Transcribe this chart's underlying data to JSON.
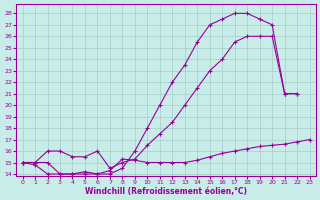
{
  "xlabel": "Windchill (Refroidissement éolien,°C)",
  "bg_color": "#c8ece8",
  "line_color": "#990099",
  "grid_color": "#a8ccc8",
  "xlim": [
    -0.5,
    23.5
  ],
  "ylim": [
    13.8,
    28.8
  ],
  "xticks": [
    0,
    1,
    2,
    3,
    4,
    5,
    6,
    7,
    8,
    9,
    10,
    11,
    12,
    13,
    14,
    15,
    16,
    17,
    18,
    19,
    20,
    21,
    22,
    23
  ],
  "yticks": [
    14,
    15,
    16,
    17,
    18,
    19,
    20,
    21,
    22,
    23,
    24,
    25,
    26,
    27,
    28
  ],
  "line1_x": [
    0,
    1,
    2,
    3,
    4,
    5,
    6,
    7,
    8,
    9,
    10,
    11,
    12,
    13,
    14,
    15,
    16,
    17,
    18,
    19,
    20,
    21,
    22,
    23
  ],
  "line1_y": [
    15.0,
    14.8,
    14.0,
    14.0,
    14.0,
    14.2,
    14.0,
    14.3,
    15.3,
    15.2,
    15.0,
    15.0,
    15.0,
    15.0,
    15.2,
    15.5,
    15.8,
    16.0,
    16.2,
    16.4,
    16.5,
    16.6,
    16.8,
    17.0
  ],
  "line2_x": [
    0,
    1,
    2,
    3,
    4,
    5,
    6,
    7,
    8,
    9,
    10,
    11,
    12,
    13,
    14,
    15,
    16,
    17,
    18,
    19,
    20,
    21,
    22
  ],
  "line2_y": [
    15.0,
    15.0,
    16.0,
    16.0,
    15.5,
    15.5,
    16.0,
    14.5,
    15.0,
    15.3,
    16.5,
    17.5,
    18.5,
    20.0,
    21.5,
    23.0,
    24.0,
    25.5,
    26.0,
    26.0,
    26.0,
    21.0,
    21.0
  ],
  "line3_x": [
    0,
    1,
    2,
    3,
    4,
    5,
    6,
    7,
    8,
    9,
    10,
    11,
    12,
    13,
    14,
    15,
    16,
    17,
    18,
    19,
    20,
    21,
    22
  ],
  "line3_y": [
    15.0,
    15.0,
    15.0,
    14.0,
    14.0,
    14.0,
    14.0,
    14.0,
    14.5,
    16.0,
    18.0,
    20.0,
    22.0,
    23.5,
    25.5,
    27.0,
    27.5,
    28.0,
    28.0,
    27.5,
    27.0,
    21.0,
    21.0
  ]
}
